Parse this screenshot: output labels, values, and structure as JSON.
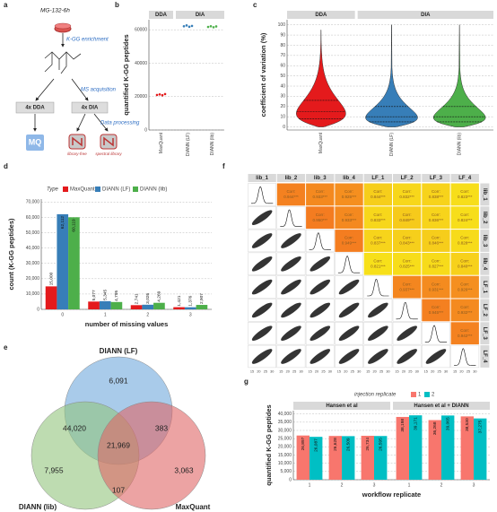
{
  "panel_labels": [
    "a",
    "b",
    "c",
    "d",
    "e",
    "f",
    "g"
  ],
  "workflow": {
    "sample": "MG-132-6h",
    "enrichment": "K-GG enrichment",
    "acquisition": "MS acquisition",
    "dda": "4x DDA",
    "dia": "4x DIA",
    "processing": "Data processing",
    "mq": "MQ",
    "library_free": "library-free",
    "spectral_library": "spectral library"
  },
  "chart_data": [
    {
      "type": "dot",
      "ylabel": "quantified K-GG peptides",
      "facets": [
        "DDA",
        "DIA"
      ],
      "categories": [
        "MaxQuant",
        "DIANN (LF)",
        "DIANN (lib)"
      ],
      "values": [
        [
          21000,
          21300,
          20800,
          21500
        ],
        [
          62100,
          62600,
          61800,
          62300
        ],
        [
          61700,
          62100,
          61500,
          62000
        ]
      ],
      "colors": [
        "#e41a1c",
        "#377eb8",
        "#4daf4a"
      ],
      "ylim": [
        0,
        66000
      ],
      "yticks": [
        0,
        20000,
        40000,
        60000
      ],
      "grid": true
    },
    {
      "type": "violin",
      "ylabel": "coefficient of variation (%)",
      "facets": [
        "DDA",
        "DIA"
      ],
      "categories": [
        "MaxQuant",
        "DIANN (LF)",
        "DIANN (lib)"
      ],
      "medians": [
        15,
        10,
        10
      ],
      "q1": [
        8,
        5,
        5
      ],
      "q3": [
        26,
        20,
        20
      ],
      "max": [
        95,
        100,
        100
      ],
      "colors": [
        "#e41a1c",
        "#377eb8",
        "#4daf4a"
      ],
      "ylim": [
        -3,
        105
      ],
      "yticks": [
        0,
        10,
        20,
        30,
        40,
        50,
        60,
        70,
        80,
        90,
        100
      ],
      "grid": true
    },
    {
      "type": "grouped_bar",
      "legend_title": "Type",
      "xlabel": "number of missing values",
      "ylabel": "count (K-GG peptides)",
      "categories": [
        "0",
        "1",
        "2",
        "3"
      ],
      "series": [
        {
          "name": "MaxQuant",
          "color": "#e41a1c",
          "values": [
            15000,
            5077,
            2741,
            1421
          ],
          "value_labels": [
            "15,000",
            "5,077",
            "2,741",
            "1,421"
          ]
        },
        {
          "name": "DIANN (LF)",
          "color": "#377eb8",
          "values": [
            62112,
            5345,
            3026,
            1376
          ],
          "value_labels": [
            "62,112",
            "5,345",
            "3,026",
            "1,376"
          ]
        },
        {
          "name": "DIANN (lib)",
          "color": "#4daf4a",
          "values": [
            60119,
            4795,
            4269,
            2907
          ],
          "value_labels": [
            "60,119",
            "4,795",
            "4,269",
            "2,907"
          ]
        }
      ],
      "ylim": [
        0,
        72000
      ],
      "yticks": [
        0,
        {
          "value": 10000,
          "label": "10,000"
        },
        {
          "value": 20000,
          "label": "20,000"
        },
        {
          "value": 30000,
          "label": "30,000"
        },
        {
          "value": 40000,
          "label": "40,000"
        },
        {
          "value": 50000,
          "label": "50,000"
        },
        {
          "value": 60000,
          "label": "60,000"
        },
        {
          "value": 70000,
          "label": "70,000"
        }
      ],
      "grid": true
    },
    {
      "type": "grouped_bar",
      "legend_title": "injection replicate",
      "xlabel": "workflow replicate",
      "ylabel": "quantified K-GG peptides",
      "facets": [
        "Hansen et al",
        "Hansen et al + DIANN"
      ],
      "categories": [
        "1",
        "2",
        "3",
        "1",
        "2",
        "3"
      ],
      "series": [
        {
          "name": "1",
          "color": "#f8766d",
          "values": [
            26897,
            26628,
            26734,
            38198,
            36268,
            38530
          ],
          "value_labels": [
            "26,897",
            "26,628",
            "26,734",
            "38,198",
            "36,268",
            "38,530"
          ]
        },
        {
          "name": "2",
          "color": "#00bfc4",
          "values": [
            26087,
            26509,
            26595,
            39171,
            39065,
            37275
          ],
          "value_labels": [
            "26,087",
            "26,509",
            "26,595",
            "39,171",
            "39,065",
            "37,275"
          ]
        }
      ],
      "ylim": [
        0,
        42000
      ],
      "yticks": [
        0,
        {
          "value": 5000,
          "label": "5,000"
        },
        {
          "value": 10000,
          "label": "10,000"
        },
        {
          "value": 15000,
          "label": "15,000"
        },
        {
          "value": 20000,
          "label": "20,000"
        },
        {
          "value": 25000,
          "label": "25,000"
        },
        {
          "value": 30000,
          "label": "30,000"
        },
        {
          "value": 35000,
          "label": "35,000"
        },
        {
          "value": 40000,
          "label": "40,000"
        }
      ],
      "grid": true
    }
  ],
  "correlation": {
    "variables": [
      "lib_1",
      "lib_2",
      "lib_3",
      "lib_4",
      "LF_1",
      "LF_2",
      "LF_3",
      "LF_4"
    ],
    "corr_label": "Corr:",
    "values": [
      0.944,
      0.933,
      0.925,
      0.844,
      0.832,
      0.838,
      0.823,
      0.95,
      0.933,
      0.833,
      0.849,
      0.836,
      0.824,
      0.949,
      0.837,
      0.843,
      0.846,
      0.828,
      0.821,
      0.825,
      0.827,
      0.84,
      0.937,
      0.931,
      0.926,
      0.945,
      0.932,
      0.942
    ],
    "value_labels": [
      "0.944***",
      "0.933***",
      "0.925***",
      "0.844***",
      "0.832***",
      "0.838***",
      "0.823***",
      "0.950***",
      "0.933***",
      "0.833***",
      "0.849***",
      "0.836***",
      "0.824***",
      "0.949***",
      "0.837***",
      "0.843***",
      "0.846***",
      "0.828***",
      "0.821***",
      "0.825***",
      "0.827***",
      "0.840***",
      "0.937***",
      "0.931***",
      "0.926***",
      "0.945***",
      "0.932***",
      "0.942***"
    ],
    "low_color": "#f7e01a",
    "high_color": "#f47c20",
    "axis_ticks": [
      15,
      20,
      25,
      30
    ]
  },
  "venn": {
    "sets": [
      "DIANN (LF)",
      "DIANN (lib)",
      "MaxQuant"
    ],
    "colors": [
      "#6fa8dc",
      "#93c47d",
      "#e06666"
    ],
    "values": [
      6091,
      44020,
      383,
      21969,
      7955,
      107,
      3063
    ],
    "value_labels": [
      "6,091",
      "44,020",
      "383",
      "21,969",
      "7,955",
      "107",
      "3,063"
    ]
  }
}
